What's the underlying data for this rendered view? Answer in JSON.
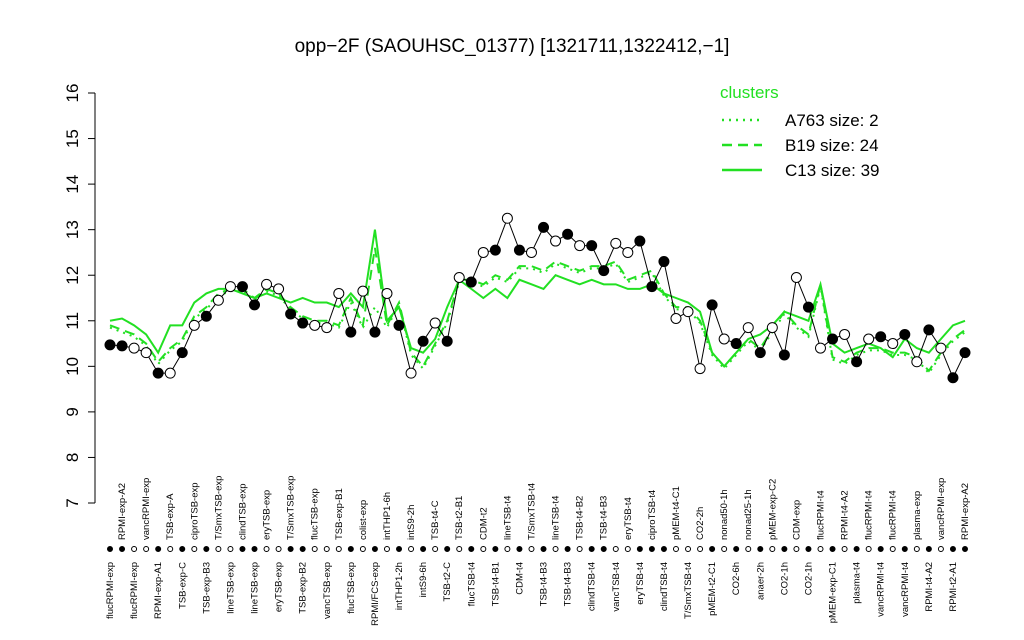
{
  "chart_data": {
    "type": "line",
    "title": "opp−2F (SAOUHSC_01377) [1321711,1322412,−1]",
    "legend_title": "clusters",
    "ylim": [
      7,
      16
    ],
    "yticks": [
      7,
      8,
      9,
      10,
      11,
      12,
      13,
      14,
      15,
      16
    ],
    "categories": [
      "flucRPMI-exp",
      "RPMI-exp-A2",
      "flucRPMI-exp",
      "vancRPMI-exp",
      "RPMI-exp-A1",
      "TSB-exp-A",
      "TSB-exp-C",
      "ciproTSB-exp",
      "TSB-exp-B3",
      "T/SmxTSB-exp",
      "lineTSB-exp",
      "clindTSB-exp",
      "lineTSB-exp",
      "eryTSB-exp",
      "eryTSB-exp",
      "T/SmxTSB-exp",
      "TSB-exp-B2",
      "flucTSB-exp",
      "vancTSB-exp",
      "TSB-exp-B1",
      "flucTSB-exp",
      "colist-exp",
      "RPMI/FCS-exp",
      "intTHP1-6h",
      "intTHP1-2h",
      "intS9-2h",
      "intS9-6h",
      "TSB-t4-C",
      "TSB-t2-C",
      "TSB-t2-B1",
      "flucTSB-t4",
      "CDM-t2",
      "TSB-t4-B1",
      "lineTSB-t4",
      "CDM-t4",
      "T/SmxTSB-t4",
      "TSB-t4-B3",
      "lineTSB-t4",
      "TSB-t4-B3",
      "TSB-t4-B2",
      "clindTSB-t4",
      "TSB-t4-B3",
      "vancTSB-t4",
      "eryTSB-t4",
      "eryTSB-t4",
      "ciproTSB-t4",
      "clindTSB-t4",
      "pMEM-t4-C1",
      "T/SmxTSB-t4",
      "CO2-2h",
      "pMEM-t2-C1",
      "nonad50-1h",
      "CO2-6h",
      "nonad25-1h",
      "anaer-2h",
      "pMEM-exp-C2",
      "CO2-1h",
      "CDM-exp",
      "CO2-1h",
      "flucRPMI-t4",
      "pMEM-exp-C1",
      "RPMI-t4-A2",
      "plasma-t4",
      "flucRPMI-t4",
      "vancRPMI-t4",
      "flucRPMI-t4",
      "vancRPMI-t4",
      "plasma-exp",
      "RPMI-t4-A2",
      "vancRPMI-exp",
      "RPMI-t2-A1",
      "RPMI-exp-A2"
    ],
    "values": [
      10.47,
      10.45,
      10.4,
      10.3,
      9.85,
      9.85,
      10.3,
      10.9,
      11.1,
      11.45,
      11.75,
      11.75,
      11.35,
      11.8,
      11.7,
      11.15,
      10.95,
      10.9,
      10.85,
      11.6,
      10.75,
      11.65,
      10.75,
      11.6,
      10.9,
      9.85,
      10.55,
      10.95,
      10.55,
      11.95,
      11.85,
      12.5,
      12.55,
      13.25,
      12.55,
      12.5,
      13.05,
      12.75,
      12.9,
      12.65,
      12.65,
      12.1,
      12.7,
      12.5,
      12.75,
      11.75,
      12.3,
      11.05,
      11.2,
      9.95,
      11.35,
      10.6,
      10.5,
      10.85,
      10.3,
      10.85,
      10.25,
      11.95,
      11.3,
      10.4,
      10.6,
      10.7,
      10.1,
      10.6,
      10.65,
      10.5,
      10.7,
      10.1,
      10.8,
      10.4,
      9.75,
      10.3
    ],
    "filled": [
      true,
      true,
      false,
      false,
      true,
      false,
      true,
      false,
      true,
      false,
      false,
      true,
      true,
      false,
      false,
      true,
      true,
      false,
      false,
      false,
      true,
      false,
      true,
      false,
      true,
      false,
      true,
      false,
      true,
      false,
      true,
      false,
      true,
      false,
      true,
      false,
      true,
      false,
      true,
      false,
      true,
      true,
      false,
      false,
      true,
      true,
      true,
      false,
      false,
      false,
      true,
      false,
      true,
      false,
      true,
      false,
      true,
      false,
      true,
      false,
      true,
      false,
      true,
      false,
      true,
      false,
      true,
      false,
      true,
      false,
      true,
      true
    ],
    "point_color": "#000000",
    "series": [
      {
        "name": "A763 size: 2",
        "linestyle": "dotted",
        "color": "#22e022",
        "values": [
          10.85,
          10.75,
          10.65,
          10.45,
          10.05,
          10.35,
          10.55,
          11.05,
          11.25,
          11.55,
          11.65,
          11.65,
          11.45,
          11.65,
          11.55,
          11.25,
          11.05,
          10.95,
          10.95,
          10.85,
          11.4,
          10.85,
          11.3,
          10.85,
          11.35,
          10.25,
          9.95,
          10.45,
          10.95,
          11.85,
          11.85,
          11.75,
          11.95,
          11.85,
          12.15,
          12.15,
          12.05,
          12.25,
          12.15,
          12.05,
          12.15,
          12.15,
          12.25,
          11.85,
          11.95,
          12.05,
          11.55,
          11.25,
          11.25,
          10.95,
          10.25,
          9.95,
          10.25,
          10.55,
          10.35,
          10.75,
          11.15,
          10.85,
          10.65,
          11.75,
          10.15,
          10.05,
          10.25,
          10.35,
          10.35,
          10.25,
          10.25,
          10.15,
          9.85,
          10.25,
          10.55,
          10.75
        ]
      },
      {
        "name": "B19 size: 24",
        "linestyle": "dashed",
        "color": "#22e022",
        "values": [
          10.9,
          10.8,
          10.7,
          10.5,
          10.1,
          10.4,
          10.6,
          11.1,
          11.3,
          11.6,
          11.7,
          11.7,
          11.5,
          11.7,
          11.6,
          11.3,
          11.1,
          11.0,
          11.0,
          10.9,
          11.5,
          10.9,
          12.6,
          10.9,
          11.4,
          10.3,
          10.0,
          10.5,
          11.0,
          11.9,
          11.9,
          11.8,
          12.0,
          11.9,
          12.2,
          12.2,
          12.1,
          12.3,
          12.2,
          12.1,
          12.2,
          12.2,
          12.3,
          11.9,
          12.0,
          12.1,
          11.6,
          11.3,
          11.3,
          11.0,
          10.3,
          10.0,
          10.3,
          10.6,
          10.4,
          10.8,
          11.2,
          10.9,
          10.7,
          11.8,
          10.2,
          10.1,
          10.3,
          10.4,
          10.4,
          10.3,
          10.3,
          10.2,
          9.9,
          10.3,
          10.6,
          10.8
        ]
      },
      {
        "name": "C13 size: 39",
        "linestyle": "solid",
        "color": "#22e022",
        "values": [
          11.0,
          11.05,
          10.9,
          10.7,
          10.3,
          10.9,
          10.9,
          11.4,
          11.6,
          11.7,
          11.7,
          11.6,
          11.5,
          11.6,
          11.5,
          11.4,
          11.5,
          11.4,
          11.4,
          11.3,
          11.6,
          11.3,
          13.0,
          11.0,
          11.3,
          10.4,
          10.3,
          10.6,
          11.3,
          11.9,
          11.7,
          11.5,
          11.7,
          11.5,
          11.9,
          11.8,
          11.7,
          12.0,
          11.9,
          11.8,
          11.9,
          11.8,
          11.8,
          11.7,
          11.7,
          11.8,
          11.6,
          11.5,
          11.4,
          11.2,
          10.3,
          10.0,
          10.3,
          10.6,
          10.7,
          10.9,
          11.2,
          11.1,
          11.0,
          11.8,
          10.5,
          10.3,
          10.4,
          10.5,
          10.4,
          10.2,
          10.6,
          10.4,
          10.3,
          10.6,
          10.9,
          11.0
        ]
      }
    ]
  }
}
